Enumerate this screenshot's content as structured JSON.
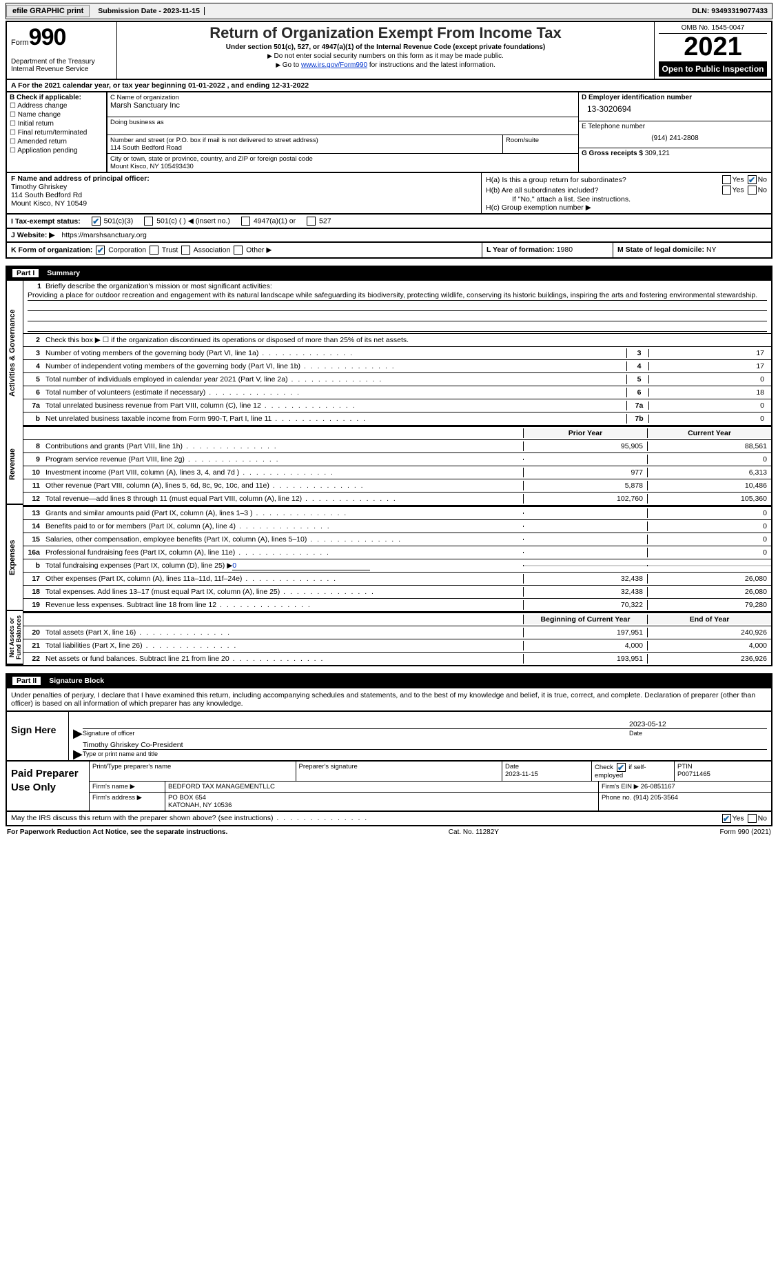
{
  "top": {
    "efile": "efile GRAPHIC print",
    "submission": "Submission Date - 2023-11-15",
    "dln": "DLN: 93493319077433"
  },
  "header": {
    "form_label": "Form",
    "form_num": "990",
    "dept": "Department of the Treasury\nInternal Revenue Service",
    "title": "Return of Organization Exempt From Income Tax",
    "sub": "Under section 501(c), 527, or 4947(a)(1) of the Internal Revenue Code (except private foundations)",
    "note1": "Do not enter social security numbers on this form as it may be made public.",
    "note2_pre": "Go to ",
    "note2_link": "www.irs.gov/Form990",
    "note2_post": " for instructions and the latest information.",
    "omb": "OMB No. 1545-0047",
    "year": "2021",
    "blackbox": "Open to Public Inspection"
  },
  "rowA": "A For the 2021 calendar year, or tax year beginning 01-01-2022    , and ending 12-31-2022",
  "B": {
    "label": "B Check if applicable:",
    "opts": [
      "Address change",
      "Name change",
      "Initial return",
      "Final return/terminated",
      "Amended return",
      "Application pending"
    ]
  },
  "C": {
    "name_lbl": "C Name of organization",
    "name": "Marsh Sanctuary Inc",
    "dba_lbl": "Doing business as",
    "addr_lbl": "Number and street (or P.O. box if mail is not delivered to street address)",
    "room_lbl": "Room/suite",
    "addr": "114 South Bedford Road",
    "city_lbl": "City or town, state or province, country, and ZIP or foreign postal code",
    "city": "Mount Kisco, NY  105493430"
  },
  "D": {
    "lbl": "D Employer identification number",
    "val": "13-3020694"
  },
  "E": {
    "lbl": "E Telephone number",
    "val": "(914) 241-2808"
  },
  "G": {
    "lbl": "G Gross receipts $",
    "val": "309,121"
  },
  "F": {
    "lbl": "F  Name and address of principal officer:",
    "name": "Timothy Ghriskey",
    "addr1": "114 South Bedford Rd",
    "addr2": "Mount Kisco, NY  10549"
  },
  "H": {
    "a": "H(a)  Is this a group return for subordinates?",
    "b": "H(b)  Are all subordinates included?",
    "b_note": "If \"No,\" attach a list. See instructions.",
    "c": "H(c)  Group exemption number ▶"
  },
  "I": {
    "lbl": "I    Tax-exempt status:",
    "o1": "501(c)(3)",
    "o2": "501(c) (  ) ◀ (insert no.)",
    "o3": "4947(a)(1) or",
    "o4": "527"
  },
  "J": {
    "lbl": "J   Website: ▶",
    "val": "https://marshsanctuary.org"
  },
  "K": {
    "lbl": "K Form of organization:",
    "o1": "Corporation",
    "o2": "Trust",
    "o3": "Association",
    "o4": "Other ▶"
  },
  "L": {
    "lbl": "L Year of formation:",
    "val": "1980"
  },
  "M": {
    "lbl": "M State of legal domicile:",
    "val": "NY"
  },
  "part1": {
    "num": "Part I",
    "title": "Summary"
  },
  "tabs": {
    "ag": "Activities & Governance",
    "rev": "Revenue",
    "exp": "Expenses",
    "na": "Net Assets or\nFund Balances"
  },
  "l1": {
    "lbl": "Briefly describe the organization's mission or most significant activities:",
    "val": "Providing a place for outdoor recreation and engagement with its natural landscape while safeguarding its biodiversity, protecting wildlife, conserving its historic buildings, inspiring the arts and fostering environmental stewardship."
  },
  "l2": "Check this box ▶ ☐  if the organization discontinued its operations or disposed of more than 25% of its net assets.",
  "lines_ag": [
    {
      "n": "3",
      "t": "Number of voting members of the governing body (Part VI, line 1a)",
      "b": "3",
      "v": "17"
    },
    {
      "n": "4",
      "t": "Number of independent voting members of the governing body (Part VI, line 1b)",
      "b": "4",
      "v": "17"
    },
    {
      "n": "5",
      "t": "Total number of individuals employed in calendar year 2021 (Part V, line 2a)",
      "b": "5",
      "v": "0"
    },
    {
      "n": "6",
      "t": "Total number of volunteers (estimate if necessary)",
      "b": "6",
      "v": "18"
    },
    {
      "n": "7a",
      "t": "Total unrelated business revenue from Part VIII, column (C), line 12",
      "b": "7a",
      "v": "0"
    },
    {
      "n": "b",
      "t": "Net unrelated business taxable income from Form 990-T, Part I, line 11",
      "b": "7b",
      "v": "0"
    }
  ],
  "col_hdr": {
    "py": "Prior Year",
    "cy": "Current Year"
  },
  "rev": [
    {
      "n": "8",
      "t": "Contributions and grants (Part VIII, line 1h)",
      "p": "95,905",
      "c": "88,561"
    },
    {
      "n": "9",
      "t": "Program service revenue (Part VIII, line 2g)",
      "p": "",
      "c": "0"
    },
    {
      "n": "10",
      "t": "Investment income (Part VIII, column (A), lines 3, 4, and 7d )",
      "p": "977",
      "c": "6,313"
    },
    {
      "n": "11",
      "t": "Other revenue (Part VIII, column (A), lines 5, 6d, 8c, 9c, 10c, and 11e)",
      "p": "5,878",
      "c": "10,486"
    },
    {
      "n": "12",
      "t": "Total revenue—add lines 8 through 11 (must equal Part VIII, column (A), line 12)",
      "p": "102,760",
      "c": "105,360"
    }
  ],
  "exp": [
    {
      "n": "13",
      "t": "Grants and similar amounts paid (Part IX, column (A), lines 1–3 )",
      "p": "",
      "c": "0"
    },
    {
      "n": "14",
      "t": "Benefits paid to or for members (Part IX, column (A), line 4)",
      "p": "",
      "c": "0"
    },
    {
      "n": "15",
      "t": "Salaries, other compensation, employee benefits (Part IX, column (A), lines 5–10)",
      "p": "",
      "c": "0"
    },
    {
      "n": "16a",
      "t": "Professional fundraising fees (Part IX, column (A), line 11e)",
      "p": "",
      "c": "0"
    }
  ],
  "l16b": {
    "n": "b",
    "t_pre": "Total fundraising expenses (Part IX, column (D), line 25) ▶",
    "t_val": "0"
  },
  "exp2": [
    {
      "n": "17",
      "t": "Other expenses (Part IX, column (A), lines 11a–11d, 11f–24e)",
      "p": "32,438",
      "c": "26,080"
    },
    {
      "n": "18",
      "t": "Total expenses. Add lines 13–17 (must equal Part IX, column (A), line 25)",
      "p": "32,438",
      "c": "26,080"
    },
    {
      "n": "19",
      "t": "Revenue less expenses. Subtract line 18 from line 12",
      "p": "70,322",
      "c": "79,280"
    }
  ],
  "col_hdr2": {
    "b": "Beginning of Current Year",
    "e": "End of Year"
  },
  "na": [
    {
      "n": "20",
      "t": "Total assets (Part X, line 16)",
      "p": "197,951",
      "c": "240,926"
    },
    {
      "n": "21",
      "t": "Total liabilities (Part X, line 26)",
      "p": "4,000",
      "c": "4,000"
    },
    {
      "n": "22",
      "t": "Net assets or fund balances. Subtract line 21 from line 20",
      "p": "193,951",
      "c": "236,926"
    }
  ],
  "part2": {
    "num": "Part II",
    "title": "Signature Block"
  },
  "sig_intro": "Under penalties of perjury, I declare that I have examined this return, including accompanying schedules and statements, and to the best of my knowledge and belief, it is true, correct, and complete. Declaration of preparer (other than officer) is based on all information of which preparer has any knowledge.",
  "sign_here": "Sign Here",
  "sig": {
    "date": "2023-05-12",
    "l1": "Signature of officer",
    "l1b": "Date",
    "name": "Timothy Ghriskey  Co-President",
    "l2": "Type or print name and title"
  },
  "paid": "Paid Preparer Use Only",
  "prep": {
    "h1": "Print/Type preparer's name",
    "h2": "Preparer's signature",
    "h3_l": "Date",
    "h3_v": "2023-11-15",
    "h4_l": "Check",
    "h4_v": "if self-employed",
    "h5_l": "PTIN",
    "h5_v": "P00711465",
    "firm_l": "Firm's name    ▶",
    "firm_v": "BEDFORD TAX MANAGEMENTLLC",
    "ein_l": "Firm's EIN ▶",
    "ein_v": "26-0851167",
    "addr_l": "Firm's address ▶",
    "addr_v1": "PO BOX 654",
    "addr_v2": "KATONAH, NY  10536",
    "ph_l": "Phone no.",
    "ph_v": "(914) 205-3564"
  },
  "may": "May the IRS discuss this return with the preparer shown above? (see instructions)",
  "footer": {
    "l": "For Paperwork Reduction Act Notice, see the separate instructions.",
    "c": "Cat. No. 11282Y",
    "r": "Form 990 (2021)"
  }
}
